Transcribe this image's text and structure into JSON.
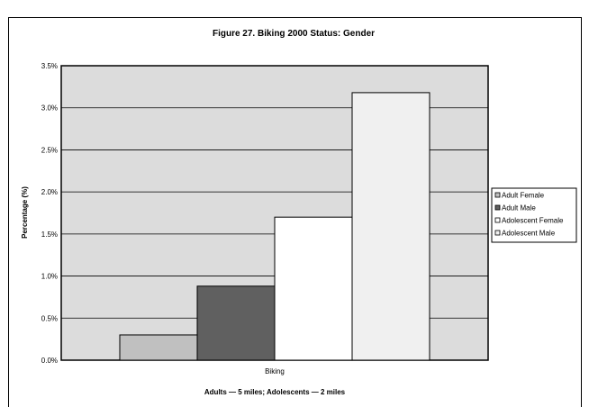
{
  "chart_data": {
    "type": "bar",
    "title": "Figure 27. Biking 2000 Status: Gender",
    "xlabel": "Adults — 5 miles; Adolescents — 2 miles",
    "ylabel": "Percentage (%)",
    "categories": [
      "Biking"
    ],
    "ylim": [
      0,
      3.5
    ],
    "yticks": [
      "0.0%",
      "0.5%",
      "1.0%",
      "1.5%",
      "2.0%",
      "2.5%",
      "3.0%",
      "3.5%"
    ],
    "series": [
      {
        "name": "Adult Female",
        "values": [
          0.3
        ],
        "color": "#c0c0c0"
      },
      {
        "name": "Adult Male",
        "values": [
          0.88
        ],
        "color": "#606060"
      },
      {
        "name": "Adolescent Female",
        "values": [
          1.7
        ],
        "color": "#ffffff"
      },
      {
        "name": "Adolescent Male",
        "values": [
          3.18
        ],
        "color": "#f0f0f0"
      }
    ],
    "grid": true,
    "plot_background": "#dcdcdc",
    "legend_position": "right"
  }
}
